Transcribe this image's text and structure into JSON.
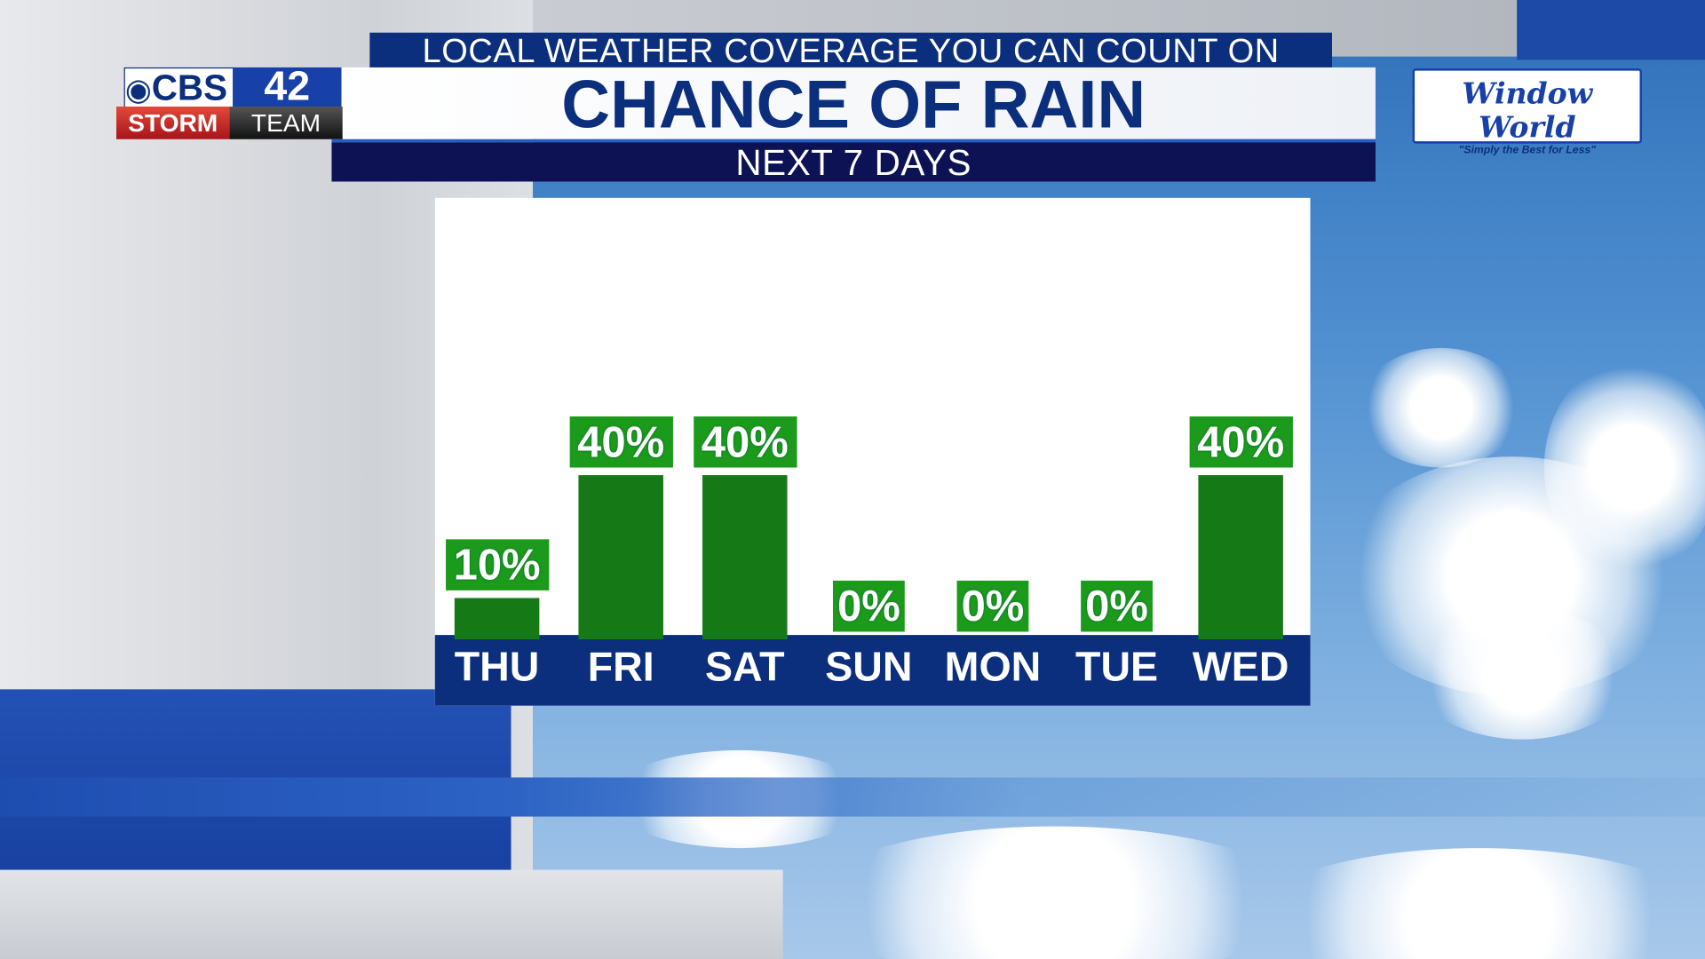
{
  "header": {
    "subtitle": "LOCAL WEATHER COVERAGE YOU CAN COUNT ON",
    "title": "CHANCE OF RAIN",
    "period": "NEXT 7 DAYS"
  },
  "logo": {
    "cbs": "CBS",
    "channel": "42",
    "storm": "STORM",
    "team": "TEAM"
  },
  "sponsor": {
    "name": "Window World",
    "tagline": "\"Simply the Best for Less\""
  },
  "colors": {
    "navy": "#0b2f7d",
    "bar": "#157a15",
    "label": "#1c9a1c"
  },
  "chart_data": {
    "type": "bar",
    "title": "CHANCE OF RAIN",
    "categories": [
      "THU",
      "FRI",
      "SAT",
      "SUN",
      "MON",
      "TUE",
      "WED"
    ],
    "values": [
      10,
      40,
      40,
      0,
      0,
      0,
      40
    ],
    "labels": [
      "10%",
      "40%",
      "40%",
      "0%",
      "0%",
      "0%",
      "40%"
    ],
    "unit": "%",
    "ylim": [
      0,
      100
    ],
    "grid": false
  }
}
